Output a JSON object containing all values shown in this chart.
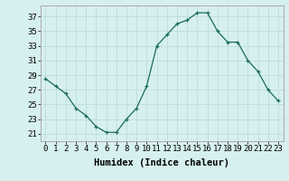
{
  "x": [
    0,
    1,
    2,
    3,
    4,
    5,
    6,
    7,
    8,
    9,
    10,
    11,
    12,
    13,
    14,
    15,
    16,
    17,
    18,
    19,
    20,
    21,
    22,
    23
  ],
  "y": [
    28.5,
    27.5,
    26.5,
    24.5,
    23.5,
    22.0,
    21.2,
    21.2,
    23.0,
    24.5,
    27.5,
    33.0,
    34.5,
    36.0,
    36.5,
    37.5,
    37.5,
    35.0,
    33.5,
    33.5,
    31.0,
    29.5,
    27.0,
    25.5
  ],
  "line_color": "#1a6b5e",
  "marker": "+",
  "marker_color": "#1a6b5e",
  "bg_color": "#d6f0ef",
  "grid_color": "#b8d8d4",
  "axis_color": "#aaaaaa",
  "xlabel": "Humidex (Indice chaleur)",
  "xlim": [
    -0.5,
    23.5
  ],
  "ylim": [
    20.0,
    38.5
  ],
  "yticks": [
    21,
    23,
    25,
    27,
    29,
    31,
    33,
    35,
    37
  ],
  "xticks": [
    0,
    1,
    2,
    3,
    4,
    5,
    6,
    7,
    8,
    9,
    10,
    11,
    12,
    13,
    14,
    15,
    16,
    17,
    18,
    19,
    20,
    21,
    22,
    23
  ],
  "xlabel_fontsize": 7.5,
  "tick_fontsize": 6.5,
  "markersize": 3.5,
  "linewidth": 0.9
}
